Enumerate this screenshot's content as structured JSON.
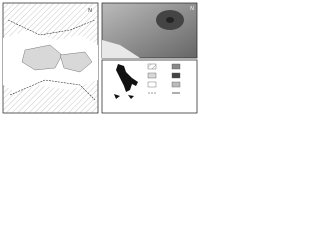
{
  "left_map": {
    "north": "N"
  },
  "right_map": {
    "north": "N"
  }
}
